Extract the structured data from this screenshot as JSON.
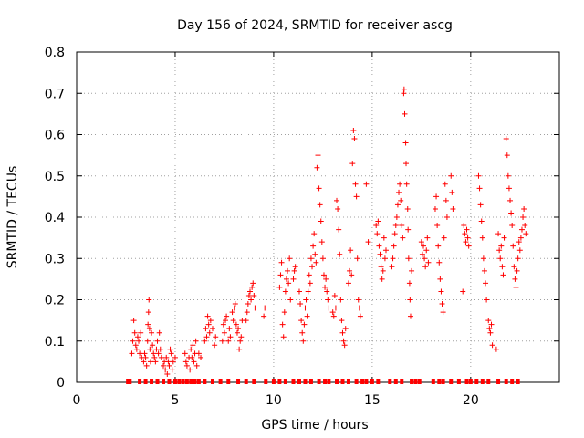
{
  "chart_data": {
    "type": "scatter",
    "title": "Day 156 of 2024, SRMTID for receiver ascg",
    "xlabel": "GPS time / hours",
    "ylabel": "SRMTID / TECUs",
    "xlim": [
      0,
      24.5
    ],
    "ylim": [
      0,
      0.8
    ],
    "xticks": [
      0,
      5,
      10,
      15,
      20
    ],
    "xtick_labels": [
      "0",
      "5",
      "10",
      "15",
      "20"
    ],
    "yticks": [
      0,
      0.1,
      0.2,
      0.3,
      0.4,
      0.5,
      0.6,
      0.7,
      0.8
    ],
    "ytick_labels": [
      "0",
      "0.1",
      "0.2",
      "0.3",
      "0.4",
      "0.5",
      "0.6",
      "0.7",
      "0.8"
    ],
    "grid": true,
    "marker": "+",
    "color": "#ff0000",
    "series": [
      {
        "name": "SRMTID",
        "points": [
          [
            2.8,
            0.07
          ],
          [
            2.85,
            0.1
          ],
          [
            2.9,
            0.15
          ],
          [
            2.95,
            0.12
          ],
          [
            3.0,
            0.09
          ],
          [
            3.05,
            0.08
          ],
          [
            3.1,
            0.11
          ],
          [
            3.15,
            0.1
          ],
          [
            3.2,
            0.07
          ],
          [
            3.25,
            0.12
          ],
          [
            3.3,
            0.06
          ],
          [
            3.4,
            0.05
          ],
          [
            3.45,
            0.07
          ],
          [
            3.5,
            0.06
          ],
          [
            3.55,
            0.04
          ],
          [
            3.6,
            0.1
          ],
          [
            3.62,
            0.14
          ],
          [
            3.65,
            0.17
          ],
          [
            3.67,
            0.2
          ],
          [
            3.7,
            0.13
          ],
          [
            3.72,
            0.08
          ],
          [
            3.75,
            0.05
          ],
          [
            3.8,
            0.12
          ],
          [
            3.85,
            0.09
          ],
          [
            3.9,
            0.07
          ],
          [
            3.95,
            0.06
          ],
          [
            4.0,
            0.05
          ],
          [
            4.05,
            0.08
          ],
          [
            4.1,
            0.1
          ],
          [
            4.15,
            0.07
          ],
          [
            4.2,
            0.12
          ],
          [
            4.25,
            0.08
          ],
          [
            4.3,
            0.06
          ],
          [
            4.4,
            0.04
          ],
          [
            4.45,
            0.05
          ],
          [
            4.5,
            0.03
          ],
          [
            4.55,
            0.06
          ],
          [
            4.6,
            0.02
          ],
          [
            4.65,
            0.05
          ],
          [
            4.7,
            0.04
          ],
          [
            4.75,
            0.08
          ],
          [
            4.8,
            0.07
          ],
          [
            4.85,
            0.03
          ],
          [
            4.9,
            0.05
          ],
          [
            5.0,
            0.06
          ],
          [
            5.5,
            0.07
          ],
          [
            5.55,
            0.05
          ],
          [
            5.6,
            0.04
          ],
          [
            5.7,
            0.06
          ],
          [
            5.75,
            0.03
          ],
          [
            5.8,
            0.08
          ],
          [
            5.85,
            0.06
          ],
          [
            5.9,
            0.09
          ],
          [
            5.95,
            0.05
          ],
          [
            6.0,
            0.07
          ],
          [
            6.05,
            0.1
          ],
          [
            6.1,
            0.04
          ],
          [
            6.2,
            0.07
          ],
          [
            6.3,
            0.06
          ],
          [
            6.5,
            0.1
          ],
          [
            6.55,
            0.13
          ],
          [
            6.6,
            0.11
          ],
          [
            6.65,
            0.16
          ],
          [
            6.7,
            0.14
          ],
          [
            6.75,
            0.12
          ],
          [
            6.8,
            0.15
          ],
          [
            6.9,
            0.13
          ],
          [
            7.0,
            0.09
          ],
          [
            7.05,
            0.11
          ],
          [
            7.4,
            0.1
          ],
          [
            7.45,
            0.14
          ],
          [
            7.5,
            0.12
          ],
          [
            7.55,
            0.15
          ],
          [
            7.6,
            0.16
          ],
          [
            7.7,
            0.1
          ],
          [
            7.75,
            0.13
          ],
          [
            7.8,
            0.11
          ],
          [
            7.9,
            0.17
          ],
          [
            7.95,
            0.15
          ],
          [
            8.0,
            0.18
          ],
          [
            8.05,
            0.19
          ],
          [
            8.1,
            0.14
          ],
          [
            8.15,
            0.12
          ],
          [
            8.2,
            0.13
          ],
          [
            8.25,
            0.08
          ],
          [
            8.3,
            0.1
          ],
          [
            8.35,
            0.11
          ],
          [
            8.4,
            0.15
          ],
          [
            8.6,
            0.15
          ],
          [
            8.65,
            0.17
          ],
          [
            8.7,
            0.19
          ],
          [
            8.75,
            0.21
          ],
          [
            8.8,
            0.22
          ],
          [
            8.85,
            0.2
          ],
          [
            8.9,
            0.23
          ],
          [
            8.95,
            0.24
          ],
          [
            9.0,
            0.21
          ],
          [
            9.05,
            0.18
          ],
          [
            9.5,
            0.16
          ],
          [
            9.55,
            0.18
          ],
          [
            10.3,
            0.23
          ],
          [
            10.35,
            0.26
          ],
          [
            10.4,
            0.29
          ],
          [
            10.45,
            0.14
          ],
          [
            10.5,
            0.11
          ],
          [
            10.55,
            0.17
          ],
          [
            10.6,
            0.22
          ],
          [
            10.65,
            0.25
          ],
          [
            10.7,
            0.27
          ],
          [
            10.75,
            0.24
          ],
          [
            10.8,
            0.3
          ],
          [
            10.85,
            0.2
          ],
          [
            11.0,
            0.25
          ],
          [
            11.05,
            0.27
          ],
          [
            11.1,
            0.28
          ],
          [
            11.3,
            0.22
          ],
          [
            11.35,
            0.19
          ],
          [
            11.4,
            0.15
          ],
          [
            11.45,
            0.12
          ],
          [
            11.5,
            0.1
          ],
          [
            11.55,
            0.14
          ],
          [
            11.6,
            0.18
          ],
          [
            11.65,
            0.2
          ],
          [
            11.7,
            0.16
          ],
          [
            11.75,
            0.22
          ],
          [
            11.8,
            0.26
          ],
          [
            11.85,
            0.24
          ],
          [
            11.9,
            0.3
          ],
          [
            11.95,
            0.28
          ],
          [
            12.0,
            0.33
          ],
          [
            12.05,
            0.36
          ],
          [
            12.1,
            0.31
          ],
          [
            12.15,
            0.29
          ],
          [
            12.2,
            0.52
          ],
          [
            12.25,
            0.55
          ],
          [
            12.3,
            0.47
          ],
          [
            12.35,
            0.43
          ],
          [
            12.4,
            0.39
          ],
          [
            12.45,
            0.34
          ],
          [
            12.5,
            0.3
          ],
          [
            12.55,
            0.26
          ],
          [
            12.6,
            0.23
          ],
          [
            12.65,
            0.25
          ],
          [
            12.7,
            0.22
          ],
          [
            12.75,
            0.2
          ],
          [
            12.8,
            0.18
          ],
          [
            13.0,
            0.17
          ],
          [
            13.05,
            0.16
          ],
          [
            13.1,
            0.21
          ],
          [
            13.15,
            0.18
          ],
          [
            13.2,
            0.44
          ],
          [
            13.25,
            0.42
          ],
          [
            13.3,
            0.37
          ],
          [
            13.35,
            0.31
          ],
          [
            13.4,
            0.2
          ],
          [
            13.45,
            0.15
          ],
          [
            13.5,
            0.12
          ],
          [
            13.55,
            0.1
          ],
          [
            13.6,
            0.09
          ],
          [
            13.65,
            0.13
          ],
          [
            13.8,
            0.24
          ],
          [
            13.85,
            0.27
          ],
          [
            13.9,
            0.32
          ],
          [
            13.95,
            0.26
          ],
          [
            14.0,
            0.53
          ],
          [
            14.05,
            0.61
          ],
          [
            14.1,
            0.59
          ],
          [
            14.15,
            0.48
          ],
          [
            14.2,
            0.45
          ],
          [
            14.25,
            0.3
          ],
          [
            14.3,
            0.2
          ],
          [
            14.35,
            0.18
          ],
          [
            14.4,
            0.16
          ],
          [
            14.7,
            0.48
          ],
          [
            14.8,
            0.34
          ],
          [
            15.2,
            0.38
          ],
          [
            15.25,
            0.36
          ],
          [
            15.3,
            0.39
          ],
          [
            15.35,
            0.33
          ],
          [
            15.4,
            0.31
          ],
          [
            15.45,
            0.28
          ],
          [
            15.5,
            0.25
          ],
          [
            15.55,
            0.27
          ],
          [
            15.6,
            0.35
          ],
          [
            15.65,
            0.3
          ],
          [
            15.7,
            0.32
          ],
          [
            16.0,
            0.28
          ],
          [
            16.05,
            0.3
          ],
          [
            16.1,
            0.33
          ],
          [
            16.15,
            0.36
          ],
          [
            16.2,
            0.38
          ],
          [
            16.25,
            0.4
          ],
          [
            16.3,
            0.43
          ],
          [
            16.35,
            0.46
          ],
          [
            16.4,
            0.48
          ],
          [
            16.45,
            0.44
          ],
          [
            16.5,
            0.38
          ],
          [
            16.55,
            0.35
          ],
          [
            16.6,
            0.7
          ],
          [
            16.62,
            0.71
          ],
          [
            16.65,
            0.65
          ],
          [
            16.7,
            0.58
          ],
          [
            16.72,
            0.53
          ],
          [
            16.75,
            0.48
          ],
          [
            16.8,
            0.42
          ],
          [
            16.82,
            0.37
          ],
          [
            16.85,
            0.3
          ],
          [
            16.9,
            0.24
          ],
          [
            16.92,
            0.2
          ],
          [
            16.95,
            0.16
          ],
          [
            17.0,
            0.27
          ],
          [
            17.5,
            0.34
          ],
          [
            17.55,
            0.31
          ],
          [
            17.6,
            0.33
          ],
          [
            17.65,
            0.3
          ],
          [
            17.7,
            0.28
          ],
          [
            17.75,
            0.32
          ],
          [
            17.8,
            0.35
          ],
          [
            17.85,
            0.29
          ],
          [
            18.2,
            0.42
          ],
          [
            18.25,
            0.45
          ],
          [
            18.3,
            0.38
          ],
          [
            18.35,
            0.33
          ],
          [
            18.4,
            0.29
          ],
          [
            18.45,
            0.25
          ],
          [
            18.5,
            0.22
          ],
          [
            18.55,
            0.19
          ],
          [
            18.6,
            0.17
          ],
          [
            18.65,
            0.35
          ],
          [
            18.7,
            0.48
          ],
          [
            18.75,
            0.44
          ],
          [
            18.8,
            0.4
          ],
          [
            19.0,
            0.5
          ],
          [
            19.05,
            0.46
          ],
          [
            19.1,
            0.42
          ],
          [
            19.6,
            0.22
          ],
          [
            19.65,
            0.38
          ],
          [
            19.7,
            0.36
          ],
          [
            19.75,
            0.34
          ],
          [
            19.8,
            0.37
          ],
          [
            19.85,
            0.35
          ],
          [
            19.9,
            0.33
          ],
          [
            20.4,
            0.5
          ],
          [
            20.45,
            0.47
          ],
          [
            20.5,
            0.43
          ],
          [
            20.55,
            0.39
          ],
          [
            20.6,
            0.35
          ],
          [
            20.65,
            0.3
          ],
          [
            20.7,
            0.27
          ],
          [
            20.75,
            0.24
          ],
          [
            20.8,
            0.2
          ],
          [
            20.9,
            0.15
          ],
          [
            20.95,
            0.13
          ],
          [
            21.0,
            0.12
          ],
          [
            21.05,
            0.14
          ],
          [
            21.1,
            0.09
          ],
          [
            21.3,
            0.08
          ],
          [
            21.4,
            0.36
          ],
          [
            21.45,
            0.32
          ],
          [
            21.5,
            0.3
          ],
          [
            21.55,
            0.33
          ],
          [
            21.6,
            0.28
          ],
          [
            21.65,
            0.26
          ],
          [
            21.7,
            0.35
          ],
          [
            21.8,
            0.59
          ],
          [
            21.85,
            0.55
          ],
          [
            21.9,
            0.5
          ],
          [
            21.95,
            0.47
          ],
          [
            22.0,
            0.44
          ],
          [
            22.05,
            0.41
          ],
          [
            22.1,
            0.38
          ],
          [
            22.15,
            0.33
          ],
          [
            22.2,
            0.28
          ],
          [
            22.25,
            0.25
          ],
          [
            22.3,
            0.23
          ],
          [
            22.35,
            0.27
          ],
          [
            22.4,
            0.3
          ],
          [
            22.45,
            0.34
          ],
          [
            22.5,
            0.32
          ],
          [
            22.55,
            0.35
          ],
          [
            22.6,
            0.37
          ],
          [
            22.65,
            0.4
          ],
          [
            22.7,
            0.42
          ],
          [
            22.75,
            0.38
          ],
          [
            22.8,
            0.36
          ]
        ],
        "zero_points": [
          2.6,
          2.7,
          3.2,
          3.5,
          3.8,
          4.1,
          4.4,
          4.7,
          5.0,
          5.2,
          5.4,
          5.6,
          5.8,
          6.0,
          6.2,
          6.5,
          6.9,
          7.3,
          7.7,
          8.2,
          8.6,
          9.0,
          9.6,
          10.0,
          10.3,
          10.6,
          11.0,
          11.3,
          11.6,
          11.9,
          12.3,
          12.6,
          12.8,
          13.2,
          13.5,
          13.8,
          14.2,
          14.5,
          14.7,
          15.0,
          15.3,
          15.9,
          16.2,
          16.5,
          17.0,
          17.2,
          17.4,
          18.1,
          18.4,
          18.6,
          19.0,
          19.4,
          19.8,
          20.0,
          20.3,
          20.6,
          20.9,
          21.4,
          21.8,
          22.1,
          22.4
        ]
      }
    ]
  }
}
